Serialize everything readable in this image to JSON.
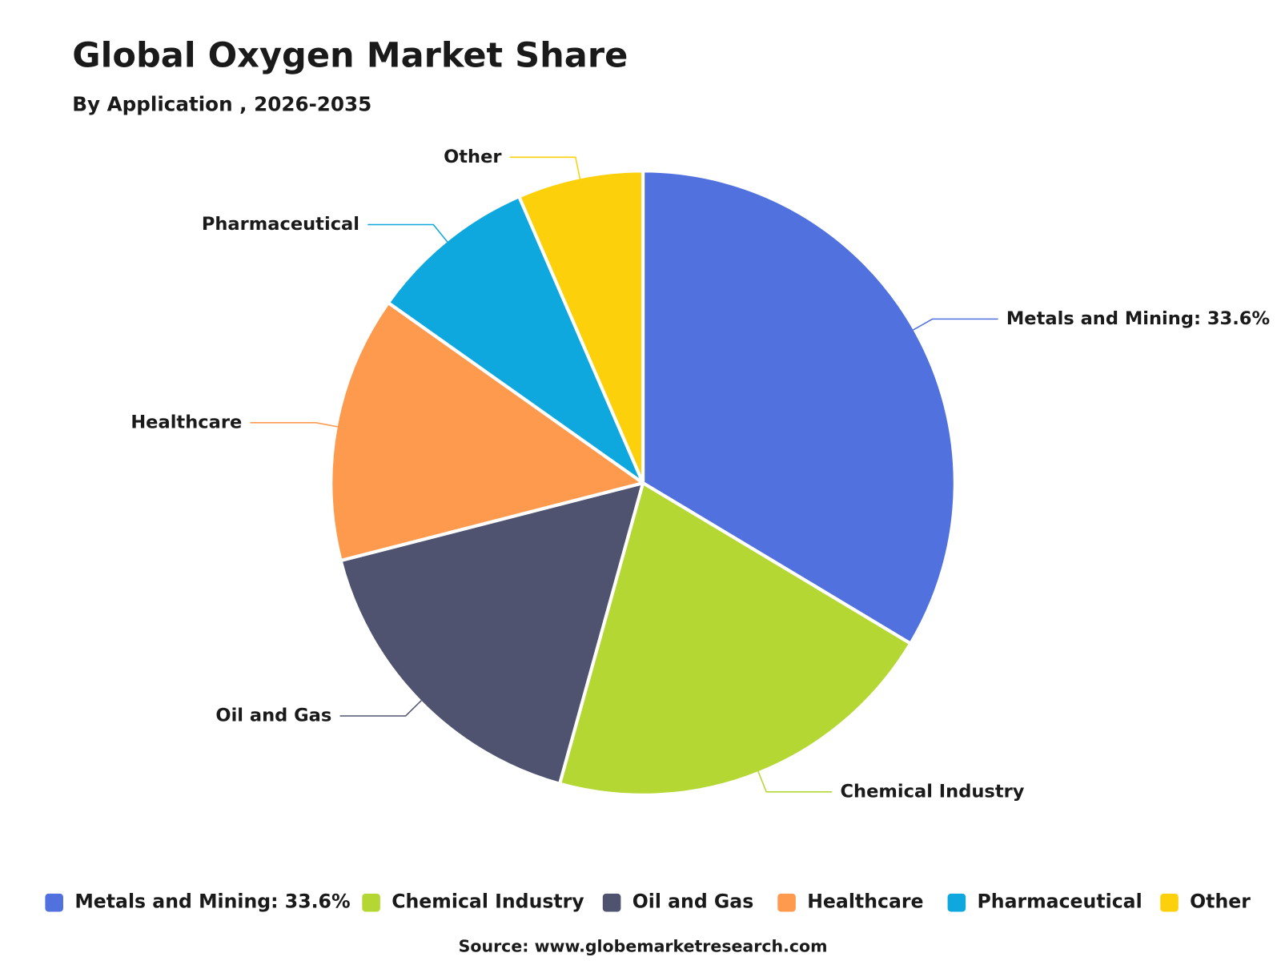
{
  "chart_data": {
    "type": "pie",
    "title": "Global Oxygen Market Share",
    "subtitle": "By Application , 2026-2035",
    "categories": [
      "Metals and Mining: 33.6%",
      "Chemical Industry",
      "Oil and Gas",
      "Healthcare",
      "Pharmaceutical",
      "Other"
    ],
    "values": [
      33.6,
      20.7,
      16.7,
      13.8,
      8.7,
      6.5
    ],
    "colors": [
      "#5172de",
      "#b5d733",
      "#505370",
      "#fd9a4e",
      "#0ea8de",
      "#fdd00c"
    ],
    "source": "Source: www.globemarketresearch.com"
  }
}
